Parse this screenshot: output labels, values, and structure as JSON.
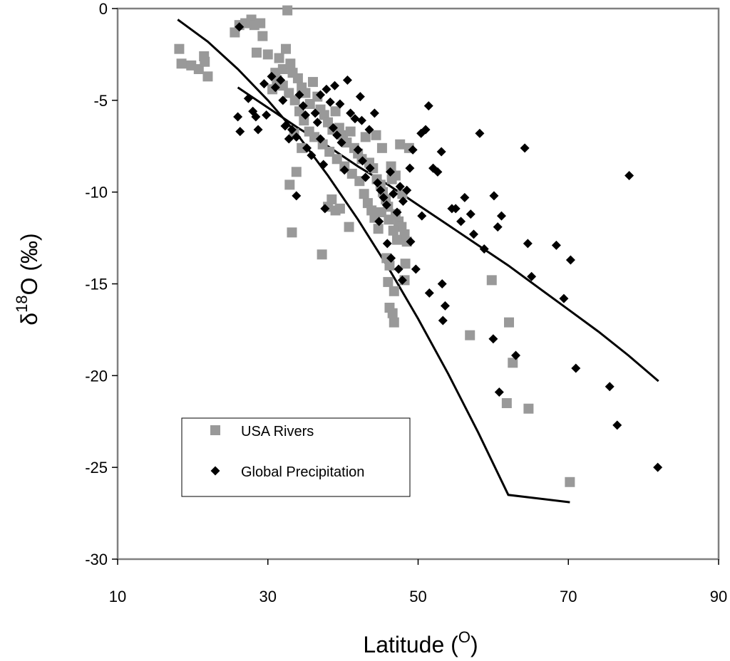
{
  "chart_data": {
    "type": "scatter",
    "xlabel": "Latitude (",
    "xlabel_sup": "O",
    "xlabel_end": ")",
    "ylabel_main": "δ",
    "ylabel_sup": "18",
    "ylabel_rest": "O (‰)",
    "xlim": [
      10,
      90
    ],
    "ylim": [
      -30,
      0
    ],
    "xticks": [
      10,
      30,
      50,
      70,
      90
    ],
    "yticks": [
      0,
      -5,
      -10,
      -15,
      -20,
      -25,
      -30
    ],
    "grid": false,
    "legend_position": "lower-left",
    "colors": {
      "usa_rivers": "#999999",
      "global_precipitation": "#000000",
      "trend": "#000000",
      "frame": "#808080"
    },
    "series": [
      {
        "name": "USA Rivers",
        "marker": "square",
        "points": [
          [
            18.2,
            -2.2
          ],
          [
            18.5,
            -3.0
          ],
          [
            19.8,
            -3.1
          ],
          [
            20.8,
            -3.3
          ],
          [
            21.5,
            -2.6
          ],
          [
            21.6,
            -2.9
          ],
          [
            22.0,
            -3.7
          ],
          [
            25.6,
            -1.3
          ],
          [
            26.2,
            -0.9
          ],
          [
            27.0,
            -0.8
          ],
          [
            27.8,
            -0.6
          ],
          [
            28.2,
            -0.9
          ],
          [
            29.0,
            -0.8
          ],
          [
            28.5,
            -2.4
          ],
          [
            29.3,
            -1.5
          ],
          [
            32.6,
            -0.1
          ],
          [
            30.0,
            -2.5
          ],
          [
            31.0,
            -3.5
          ],
          [
            31.5,
            -2.7
          ],
          [
            32.0,
            -3.3
          ],
          [
            32.4,
            -2.2
          ],
          [
            33.0,
            -3.0
          ],
          [
            33.3,
            -3.5
          ],
          [
            34.0,
            -3.8
          ],
          [
            34.5,
            -4.3
          ],
          [
            35.0,
            -4.6
          ],
          [
            35.6,
            -5.2
          ],
          [
            36.0,
            -4.0
          ],
          [
            36.6,
            -4.8
          ],
          [
            37.0,
            -5.5
          ],
          [
            37.5,
            -5.8
          ],
          [
            38.0,
            -6.2
          ],
          [
            38.6,
            -6.6
          ],
          [
            39.0,
            -5.6
          ],
          [
            39.5,
            -6.5
          ],
          [
            40.0,
            -6.9
          ],
          [
            40.5,
            -7.3
          ],
          [
            41.0,
            -6.7
          ],
          [
            41.5,
            -7.6
          ],
          [
            42.0,
            -7.9
          ],
          [
            42.5,
            -8.2
          ],
          [
            43.0,
            -7.0
          ],
          [
            43.5,
            -8.4
          ],
          [
            44.0,
            -8.7
          ],
          [
            44.5,
            -9.3
          ],
          [
            45.0,
            -9.6
          ],
          [
            45.3,
            -10.0
          ],
          [
            45.7,
            -10.4
          ],
          [
            46.0,
            -10.8
          ],
          [
            46.5,
            -9.3
          ],
          [
            47.0,
            -11.2
          ],
          [
            47.4,
            -11.6
          ],
          [
            47.8,
            -11.9
          ],
          [
            48.2,
            -12.3
          ],
          [
            48.5,
            -12.7
          ],
          [
            42.2,
            -9.4
          ],
          [
            42.8,
            -10.1
          ],
          [
            43.3,
            -10.6
          ],
          [
            43.8,
            -11.0
          ],
          [
            44.2,
            -11.4
          ],
          [
            44.7,
            -12.0
          ],
          [
            45.1,
            -11.1
          ],
          [
            46.1,
            -11.5
          ],
          [
            46.7,
            -12.1
          ],
          [
            47.2,
            -12.6
          ],
          [
            34.2,
            -5.6
          ],
          [
            34.8,
            -6.1
          ],
          [
            35.5,
            -6.7
          ],
          [
            36.2,
            -7.0
          ],
          [
            37.3,
            -7.4
          ],
          [
            38.2,
            -7.8
          ],
          [
            39.2,
            -8.2
          ],
          [
            40.2,
            -8.6
          ],
          [
            41.2,
            -9.0
          ],
          [
            32.0,
            -4.2
          ],
          [
            32.8,
            -4.6
          ],
          [
            33.6,
            -5.0
          ],
          [
            30.6,
            -4.4
          ],
          [
            31.2,
            -3.9
          ],
          [
            44.4,
            -6.9
          ],
          [
            45.2,
            -7.6
          ],
          [
            46.4,
            -8.6
          ],
          [
            47.6,
            -7.4
          ],
          [
            48.8,
            -7.6
          ],
          [
            47.0,
            -9.1
          ],
          [
            47.9,
            -10.1
          ],
          [
            33.5,
            -6.8
          ],
          [
            34.5,
            -7.6
          ],
          [
            33.8,
            -8.9
          ],
          [
            32.9,
            -9.6
          ],
          [
            33.2,
            -12.2
          ],
          [
            37.2,
            -13.4
          ],
          [
            38.0,
            -10.8
          ],
          [
            38.5,
            -10.4
          ],
          [
            39.0,
            -11.0
          ],
          [
            39.6,
            -10.9
          ],
          [
            40.8,
            -11.9
          ],
          [
            45.8,
            -13.6
          ],
          [
            46.2,
            -14.0
          ],
          [
            46.0,
            -14.9
          ],
          [
            46.8,
            -15.4
          ],
          [
            46.2,
            -16.3
          ],
          [
            46.6,
            -16.6
          ],
          [
            46.8,
            -17.1
          ],
          [
            48.3,
            -13.9
          ],
          [
            48.2,
            -14.8
          ],
          [
            56.9,
            -17.8
          ],
          [
            59.8,
            -14.8
          ],
          [
            62.1,
            -17.1
          ],
          [
            62.6,
            -19.3
          ],
          [
            61.8,
            -21.5
          ],
          [
            64.7,
            -21.8
          ],
          [
            70.2,
            -25.8
          ]
        ]
      },
      {
        "name": "Global Precipitation",
        "marker": "diamond",
        "points": [
          [
            26.2,
            -1.0
          ],
          [
            26.0,
            -5.9
          ],
          [
            26.3,
            -6.7
          ],
          [
            27.4,
            -4.9
          ],
          [
            28.0,
            -5.6
          ],
          [
            28.4,
            -5.9
          ],
          [
            28.7,
            -6.6
          ],
          [
            29.8,
            -5.8
          ],
          [
            30.5,
            -3.7
          ],
          [
            31.0,
            -4.3
          ],
          [
            31.7,
            -3.9
          ],
          [
            32.0,
            -5.0
          ],
          [
            32.3,
            -6.4
          ],
          [
            32.8,
            -7.1
          ],
          [
            33.2,
            -6.6
          ],
          [
            33.8,
            -7.0
          ],
          [
            34.2,
            -4.7
          ],
          [
            34.7,
            -5.3
          ],
          [
            35.2,
            -7.6
          ],
          [
            35.8,
            -8.0
          ],
          [
            36.3,
            -5.7
          ],
          [
            36.6,
            -6.2
          ],
          [
            37.0,
            -7.1
          ],
          [
            37.4,
            -8.5
          ],
          [
            37.8,
            -4.4
          ],
          [
            38.3,
            -5.1
          ],
          [
            38.7,
            -6.5
          ],
          [
            39.2,
            -6.9
          ],
          [
            39.8,
            -7.3
          ],
          [
            40.2,
            -8.8
          ],
          [
            40.6,
            -3.9
          ],
          [
            41.0,
            -5.7
          ],
          [
            41.6,
            -6.0
          ],
          [
            42.0,
            -7.7
          ],
          [
            42.6,
            -8.3
          ],
          [
            43.0,
            -9.2
          ],
          [
            43.6,
            -8.7
          ],
          [
            44.2,
            -5.7
          ],
          [
            44.6,
            -9.5
          ],
          [
            45.0,
            -9.9
          ],
          [
            45.4,
            -10.3
          ],
          [
            45.8,
            -10.7
          ],
          [
            46.3,
            -8.9
          ],
          [
            46.7,
            -10.1
          ],
          [
            47.2,
            -11.1
          ],
          [
            47.6,
            -9.7
          ],
          [
            48.0,
            -10.5
          ],
          [
            48.5,
            -9.9
          ],
          [
            48.9,
            -8.7
          ],
          [
            49.3,
            -7.7
          ],
          [
            50.4,
            -6.8
          ],
          [
            51.0,
            -6.6
          ],
          [
            51.4,
            -5.3
          ],
          [
            52.0,
            -8.7
          ],
          [
            52.6,
            -8.9
          ],
          [
            53.1,
            -7.8
          ],
          [
            55.0,
            -10.9
          ],
          [
            56.2,
            -10.3
          ],
          [
            57.4,
            -12.3
          ],
          [
            58.2,
            -6.8
          ],
          [
            58.8,
            -13.1
          ],
          [
            60.1,
            -10.2
          ],
          [
            60.6,
            -11.9
          ],
          [
            61.1,
            -11.3
          ],
          [
            64.2,
            -7.6
          ],
          [
            64.6,
            -12.8
          ],
          [
            65.1,
            -14.6
          ],
          [
            68.4,
            -12.9
          ],
          [
            69.4,
            -15.8
          ],
          [
            70.3,
            -13.7
          ],
          [
            71.0,
            -19.6
          ],
          [
            75.5,
            -20.6
          ],
          [
            76.5,
            -22.7
          ],
          [
            78.1,
            -9.1
          ],
          [
            81.9,
            -25.0
          ],
          [
            60.0,
            -18.0
          ],
          [
            60.8,
            -20.9
          ],
          [
            63.0,
            -18.9
          ],
          [
            49.7,
            -14.2
          ],
          [
            51.5,
            -15.5
          ],
          [
            53.2,
            -15.0
          ],
          [
            53.6,
            -16.2
          ],
          [
            53.3,
            -17.0
          ],
          [
            47.4,
            -14.2
          ],
          [
            47.9,
            -14.8
          ],
          [
            49.0,
            -12.7
          ],
          [
            50.5,
            -11.3
          ],
          [
            54.5,
            -10.9
          ],
          [
            45.9,
            -12.8
          ],
          [
            46.4,
            -13.6
          ],
          [
            44.8,
            -11.6
          ],
          [
            55.7,
            -11.6
          ],
          [
            57.0,
            -11.2
          ],
          [
            33.8,
            -10.2
          ],
          [
            37.6,
            -10.9
          ],
          [
            35.0,
            -5.8
          ],
          [
            39.6,
            -5.2
          ],
          [
            42.5,
            -6.1
          ],
          [
            43.5,
            -6.6
          ],
          [
            29.5,
            -4.1
          ],
          [
            37.0,
            -4.7
          ],
          [
            38.9,
            -4.2
          ],
          [
            42.3,
            -4.8
          ]
        ]
      }
    ],
    "trendlines": [
      {
        "points": [
          [
            18,
            -0.6
          ],
          [
            22,
            -1.8
          ],
          [
            26,
            -3.3
          ],
          [
            30,
            -5.0
          ],
          [
            34,
            -6.9
          ],
          [
            38,
            -9.1
          ],
          [
            42,
            -11.5
          ],
          [
            46,
            -14.1
          ],
          [
            50,
            -16.9
          ],
          [
            54,
            -19.9
          ],
          [
            58,
            -23.1
          ],
          [
            62,
            -26.5
          ],
          [
            70.2,
            -26.9
          ]
        ]
      },
      {
        "points": [
          [
            26,
            -4.3
          ],
          [
            30,
            -5.4
          ],
          [
            34,
            -6.5
          ],
          [
            38,
            -7.5
          ],
          [
            42,
            -8.6
          ],
          [
            46,
            -9.6
          ],
          [
            50,
            -10.7
          ],
          [
            54,
            -11.8
          ],
          [
            58,
            -12.9
          ],
          [
            62,
            -14.0
          ],
          [
            66,
            -15.2
          ],
          [
            70,
            -16.4
          ],
          [
            74,
            -17.6
          ],
          [
            78,
            -18.9
          ],
          [
            82,
            -20.3
          ]
        ]
      }
    ]
  }
}
